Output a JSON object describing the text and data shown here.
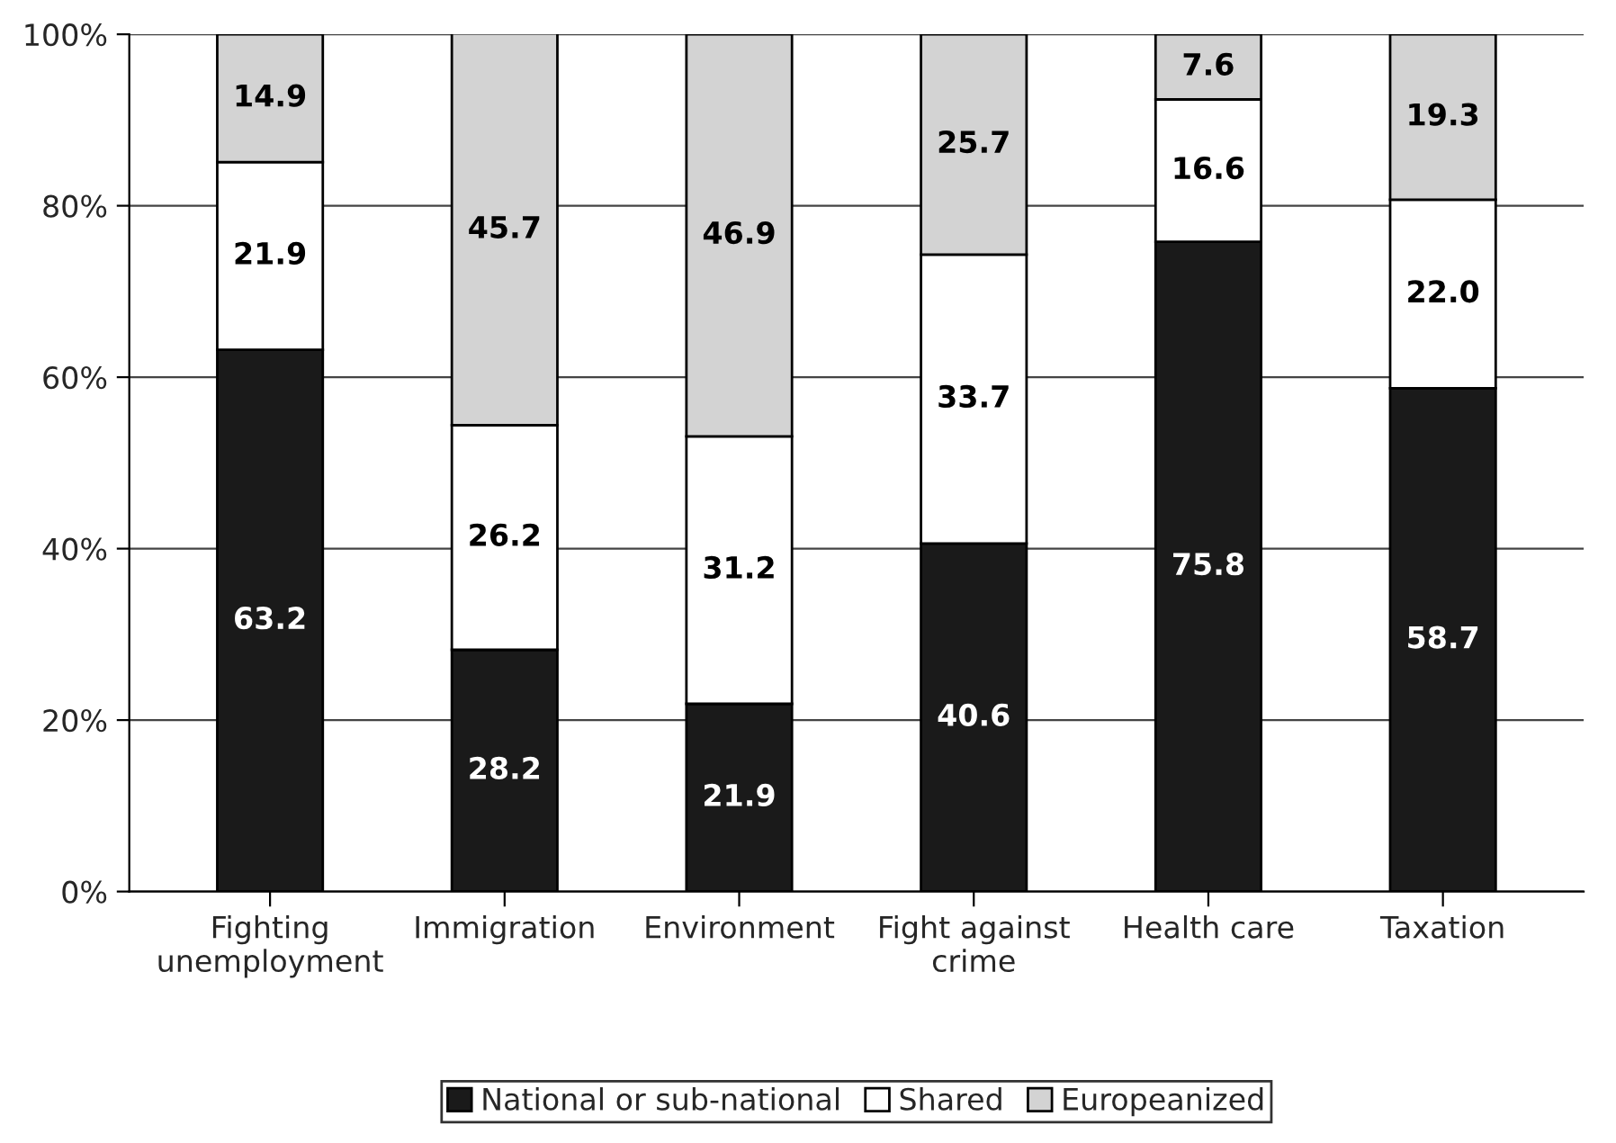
{
  "chart_data": {
    "type": "bar",
    "stacked": true,
    "categories": [
      "Fighting\nunemployment",
      "Immigration",
      "Environment",
      "Fight against\ncrime",
      "Health care",
      "Taxation"
    ],
    "series": [
      {
        "name": "National or sub-national",
        "color": "#1a1a1a",
        "values": [
          63.2,
          28.2,
          21.9,
          40.6,
          75.8,
          58.7
        ]
      },
      {
        "name": "Shared",
        "color": "#ffffff",
        "values": [
          21.9,
          26.2,
          31.2,
          33.7,
          16.6,
          22.0
        ]
      },
      {
        "name": "Europeanized",
        "color": "#d3d3d3",
        "values": [
          14.9,
          45.7,
          46.9,
          25.7,
          7.6,
          19.3
        ]
      }
    ],
    "value_labels": [
      [
        "63.2",
        "28.2",
        "21.9",
        "40.6",
        "75.8",
        "58.7"
      ],
      [
        "21.9",
        "26.2",
        "31.2",
        "33.7",
        "16.6",
        "22.0"
      ],
      [
        "14.9",
        "45.7",
        "46.9",
        "25.7",
        "7.6",
        "19.3"
      ]
    ],
    "ylim": [
      0,
      100
    ],
    "yticks": [
      {
        "value": 0,
        "label": "0%"
      },
      {
        "value": 20,
        "label": "20%"
      },
      {
        "value": 40,
        "label": "40%"
      },
      {
        "value": 60,
        "label": "60%"
      },
      {
        "value": 80,
        "label": "80%"
      },
      {
        "value": 100,
        "label": "100%"
      }
    ],
    "grid": "y",
    "legend": "bottom"
  }
}
